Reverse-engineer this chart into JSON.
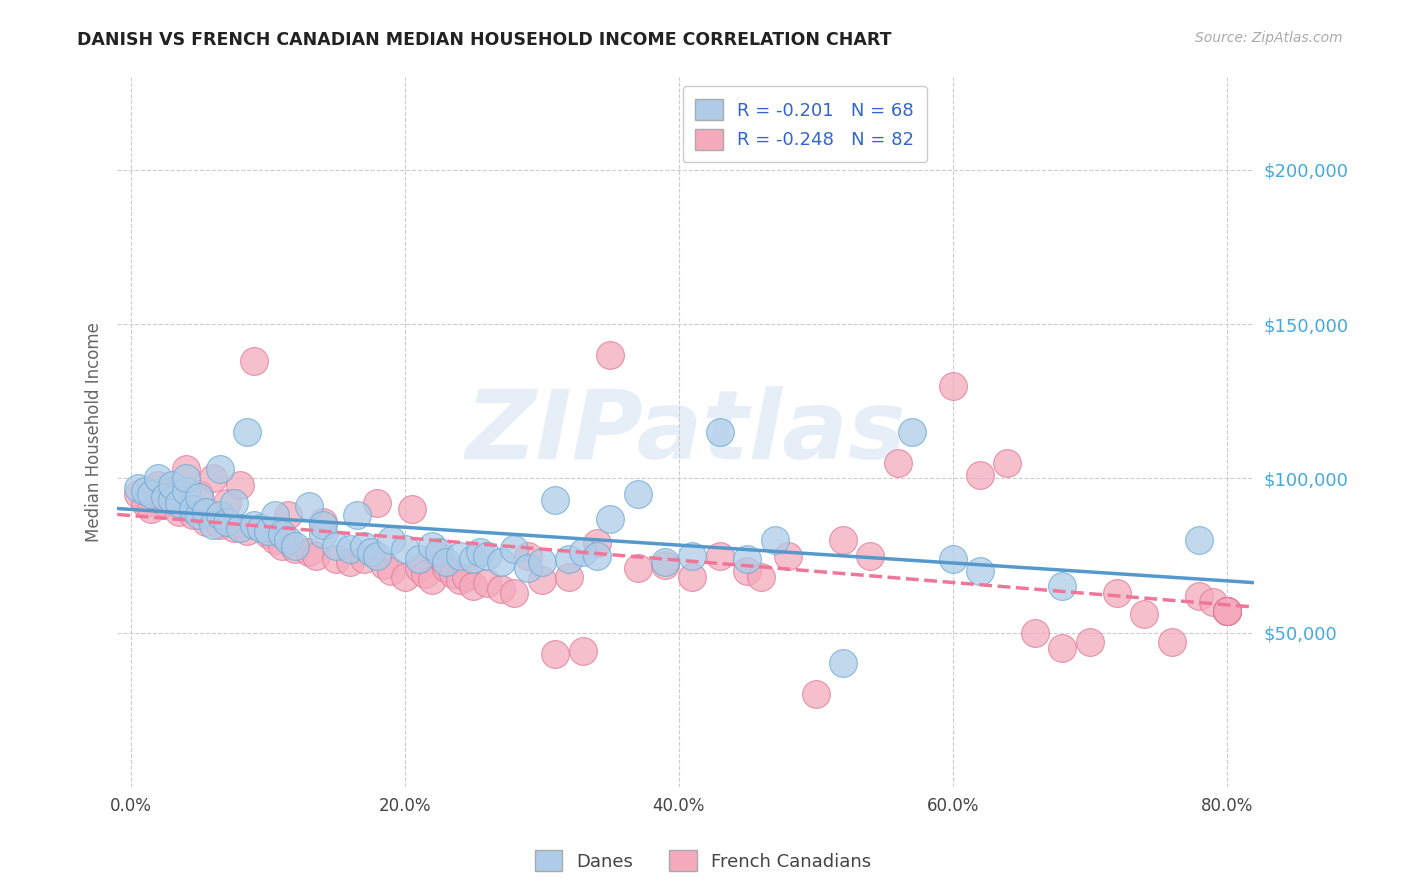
{
  "title": "DANISH VS FRENCH CANADIAN MEDIAN HOUSEHOLD INCOME CORRELATION CHART",
  "source": "Source: ZipAtlas.com",
  "ylabel": "Median Household Income",
  "ytick_labels": [
    "$50,000",
    "$100,000",
    "$150,000",
    "$200,000"
  ],
  "ytick_vals": [
    50000,
    100000,
    150000,
    200000
  ],
  "xtick_labels": [
    "0.0%",
    "20.0%",
    "40.0%",
    "60.0%",
    "80.0%"
  ],
  "xtick_vals": [
    0.0,
    0.2,
    0.4,
    0.6,
    0.8
  ],
  "xlim": [
    -0.01,
    0.82
  ],
  "ylim": [
    0,
    230000
  ],
  "danes_R": -0.201,
  "danes_N": 68,
  "french_R": -0.248,
  "french_N": 82,
  "danes_color": "#aecce8",
  "danes_edge": "#6aaad4",
  "french_color": "#f4aabc",
  "french_edge": "#e07898",
  "danes_line_color": "#5599cc",
  "french_line_color": "#ee7799",
  "legend_text_color": "#3366cc",
  "watermark": "ZIPatlas",
  "danes_x": [
    0.005,
    0.01,
    0.015,
    0.02,
    0.025,
    0.03,
    0.03,
    0.035,
    0.04,
    0.04,
    0.045,
    0.05,
    0.05,
    0.055,
    0.06,
    0.065,
    0.065,
    0.07,
    0.075,
    0.08,
    0.085,
    0.09,
    0.095,
    0.1,
    0.105,
    0.11,
    0.115,
    0.12,
    0.13,
    0.14,
    0.14,
    0.15,
    0.16,
    0.165,
    0.17,
    0.175,
    0.18,
    0.19,
    0.2,
    0.21,
    0.22,
    0.225,
    0.23,
    0.24,
    0.25,
    0.255,
    0.26,
    0.27,
    0.28,
    0.29,
    0.3,
    0.31,
    0.32,
    0.33,
    0.34,
    0.35,
    0.37,
    0.39,
    0.41,
    0.43,
    0.45,
    0.47,
    0.52,
    0.57,
    0.6,
    0.62,
    0.68,
    0.78
  ],
  "danes_y": [
    97000,
    96000,
    95000,
    100000,
    94000,
    93000,
    98000,
    92000,
    96000,
    100000,
    90000,
    88000,
    94000,
    89000,
    85000,
    103000,
    88000,
    86000,
    92000,
    84000,
    115000,
    85000,
    84000,
    83000,
    88000,
    82000,
    80000,
    78000,
    91000,
    82000,
    85000,
    78000,
    77000,
    88000,
    78000,
    76000,
    75000,
    80000,
    77000,
    74000,
    78000,
    76000,
    73000,
    75000,
    74000,
    76000,
    75000,
    73000,
    77000,
    71000,
    73000,
    93000,
    74000,
    76000,
    75000,
    87000,
    95000,
    73000,
    75000,
    115000,
    74000,
    80000,
    40000,
    115000,
    74000,
    70000,
    65000,
    80000
  ],
  "french_x": [
    0.005,
    0.01,
    0.015,
    0.02,
    0.025,
    0.03,
    0.035,
    0.04,
    0.045,
    0.05,
    0.055,
    0.06,
    0.065,
    0.07,
    0.075,
    0.08,
    0.085,
    0.09,
    0.1,
    0.105,
    0.11,
    0.115,
    0.12,
    0.13,
    0.135,
    0.14,
    0.15,
    0.16,
    0.17,
    0.18,
    0.185,
    0.19,
    0.2,
    0.205,
    0.21,
    0.215,
    0.22,
    0.225,
    0.23,
    0.235,
    0.24,
    0.245,
    0.25,
    0.26,
    0.27,
    0.28,
    0.29,
    0.3,
    0.31,
    0.32,
    0.33,
    0.34,
    0.35,
    0.37,
    0.39,
    0.41,
    0.43,
    0.45,
    0.46,
    0.48,
    0.5,
    0.52,
    0.54,
    0.56,
    0.6,
    0.62,
    0.64,
    0.66,
    0.68,
    0.7,
    0.72,
    0.74,
    0.76,
    0.78,
    0.79,
    0.8,
    0.8,
    0.8,
    0.8,
    0.8,
    0.8,
    0.8
  ],
  "french_y": [
    95000,
    92000,
    90000,
    98000,
    92000,
    96000,
    89000,
    103000,
    88000,
    95000,
    86000,
    100000,
    85000,
    92000,
    84000,
    98000,
    83000,
    138000,
    82000,
    80000,
    78000,
    88000,
    77000,
    76000,
    75000,
    86000,
    74000,
    73000,
    74000,
    92000,
    72000,
    70000,
    68000,
    90000,
    71000,
    69000,
    67000,
    75000,
    71000,
    69000,
    67000,
    68000,
    65000,
    66000,
    64000,
    63000,
    75000,
    67000,
    43000,
    68000,
    44000,
    79000,
    140000,
    71000,
    72000,
    68000,
    75000,
    70000,
    68000,
    75000,
    30000,
    80000,
    75000,
    105000,
    130000,
    101000,
    105000,
    50000,
    45000,
    47000,
    63000,
    56000,
    47000,
    62000,
    60000,
    57000,
    57000,
    57000,
    57000,
    57000,
    57000,
    57000
  ]
}
